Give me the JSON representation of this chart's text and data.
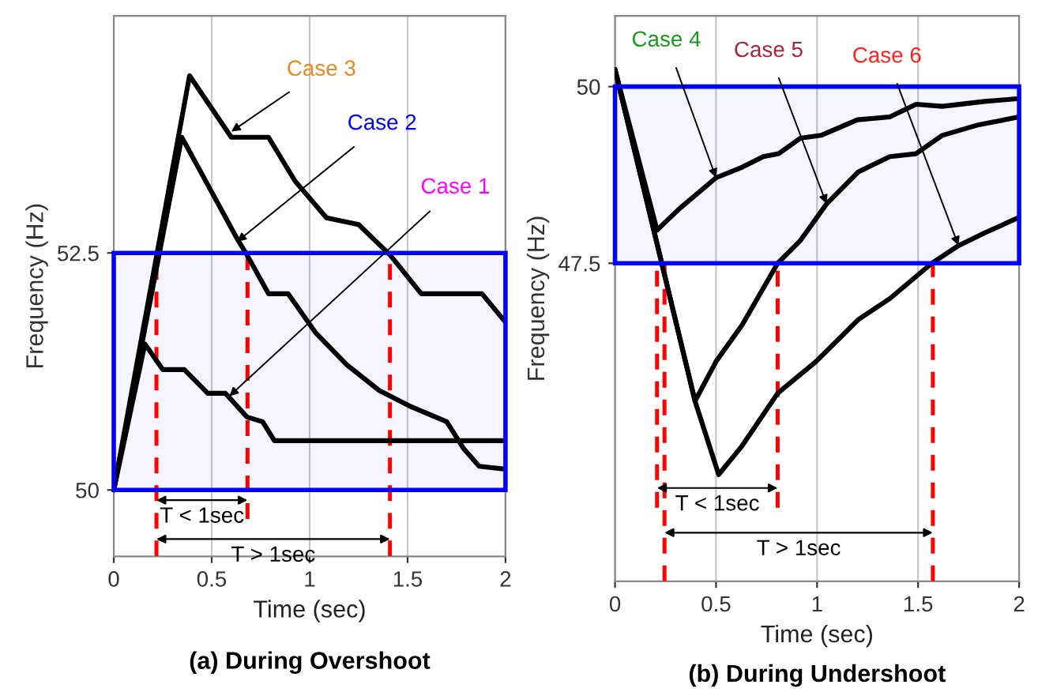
{
  "chart_data": [
    {
      "type": "line",
      "title": "(a) During Overshoot",
      "xlabel": "Time (sec)",
      "ylabel": "Frequency (Hz)",
      "series": [
        {
          "color": "#000000",
          "x": [
            0,
            0.159,
            0.25,
            0.36,
            0.48,
            0.57,
            0.68,
            0.76,
            0.82,
            2.0
          ],
          "values": [
            50,
            51.54,
            51.27,
            51.27,
            51.02,
            51.02,
            50.77,
            50.72,
            50.52,
            50.52
          ]
        },
        {
          "color": "#000000",
          "x": [
            0,
            0.347,
            0.44,
            0.63,
            0.68,
            0.79,
            0.89,
            1.03,
            1.19,
            1.355,
            1.516,
            1.7,
            1.785,
            1.865,
            2.0
          ],
          "values": [
            50,
            53.72,
            53.37,
            52.65,
            52.48,
            52.07,
            52.07,
            51.66,
            51.32,
            51.05,
            50.88,
            50.72,
            50.44,
            50.25,
            50.22
          ]
        },
        {
          "color": "#000000",
          "x": [
            0,
            0.387,
            0.6,
            0.79,
            0.925,
            1.086,
            1.25,
            1.41,
            1.57,
            1.88,
            2.0
          ],
          "values": [
            50,
            54.37,
            53.72,
            53.72,
            53.26,
            52.87,
            52.8,
            52.48,
            52.07,
            52.07,
            51.77
          ]
        }
      ],
      "xlim": [
        0,
        2
      ],
      "xticks": [
        0,
        0.5,
        1,
        1.5,
        2
      ],
      "ylim": [
        49.3,
        55
      ],
      "yticks": [
        50,
        52.5
      ],
      "grid": "x",
      "ref_lines": [
        {
          "axis": "x",
          "value": 0.218,
          "color": "#ff0000",
          "line_style": "dashed"
        },
        {
          "axis": "x",
          "value": 0.683,
          "color": "#ff0000",
          "line_style": "dashed"
        },
        {
          "axis": "x",
          "value": 1.41,
          "color": "#ff0000",
          "line_style": "dashed"
        }
      ],
      "bands": [
        {
          "axis": "y",
          "from": 50,
          "to": 52.5,
          "color": "#0000ff"
        }
      ],
      "annotations": [
        {
          "text": "Case 3",
          "x": 0.6,
          "y": 53.78
        },
        {
          "text": "Case 2",
          "x": 0.63,
          "y": 52.62
        },
        {
          "text": "Case 1",
          "x": 0.59,
          "y": 50.99
        },
        "T < 1sec",
        "T > 1sec"
      ]
    },
    {
      "type": "line",
      "title": "(b) During Undershoot",
      "xlabel": "Time (sec)",
      "ylabel": "Frequency (Hz)",
      "series": [
        {
          "color": "#000000",
          "x": [
            0,
            0.208,
            0.318,
            0.5,
            0.63,
            0.734,
            0.81,
            0.917,
            1.02,
            1.2,
            1.36,
            1.49,
            1.62,
            1.83,
            2.0
          ],
          "values": [
            50.24,
            47.97,
            48.27,
            48.71,
            48.86,
            49.01,
            49.05,
            49.27,
            49.31,
            49.53,
            49.57,
            49.75,
            49.72,
            49.79,
            49.83
          ]
        },
        {
          "color": "#000000",
          "x": [
            0,
            0.396,
            0.5,
            0.63,
            0.805,
            0.917,
            1.047,
            1.203,
            1.36,
            1.49,
            1.62,
            1.8,
            2.0
          ],
          "values": [
            50.24,
            45.55,
            46.11,
            46.63,
            47.5,
            47.82,
            48.34,
            48.79,
            49.01,
            49.05,
            49.31,
            49.46,
            49.57
          ]
        },
        {
          "color": "#000000",
          "x": [
            0,
            0.396,
            0.513,
            0.63,
            0.805,
            0.995,
            1.203,
            1.36,
            1.568,
            1.7,
            1.83,
            2.0
          ],
          "values": [
            50.24,
            45.55,
            44.51,
            44.92,
            45.66,
            46.11,
            46.7,
            47.0,
            47.5,
            47.75,
            47.93,
            48.15
          ]
        }
      ],
      "xlim": [
        0,
        2
      ],
      "xticks": [
        0,
        0.5,
        1,
        1.5,
        2
      ],
      "ylim": [
        43,
        51
      ],
      "yticks": [
        47.5,
        50
      ],
      "grid": "x",
      "ref_lines": [
        {
          "axis": "x",
          "value": 0.208,
          "color": "#ff0000",
          "line_style": "dashed"
        },
        {
          "axis": "x",
          "value": 0.245,
          "color": "#ff0000",
          "line_style": "dashed"
        },
        {
          "axis": "x",
          "value": 0.805,
          "color": "#ff0000",
          "line_style": "dashed"
        },
        {
          "axis": "x",
          "value": 1.573,
          "color": "#ff0000",
          "line_style": "dashed"
        }
      ],
      "bands": [
        {
          "axis": "y",
          "from": 47.5,
          "to": 50,
          "color": "#0000ff"
        }
      ],
      "annotations": [
        {
          "text": "Case 4",
          "x": 0.5,
          "y": 48.71
        },
        {
          "text": "Case 5",
          "x": 1.047,
          "y": 48.34
        },
        {
          "text": "Case 6",
          "x": 1.7,
          "y": 47.75
        },
        "T < 1sec",
        "T > 1sec"
      ]
    }
  ]
}
